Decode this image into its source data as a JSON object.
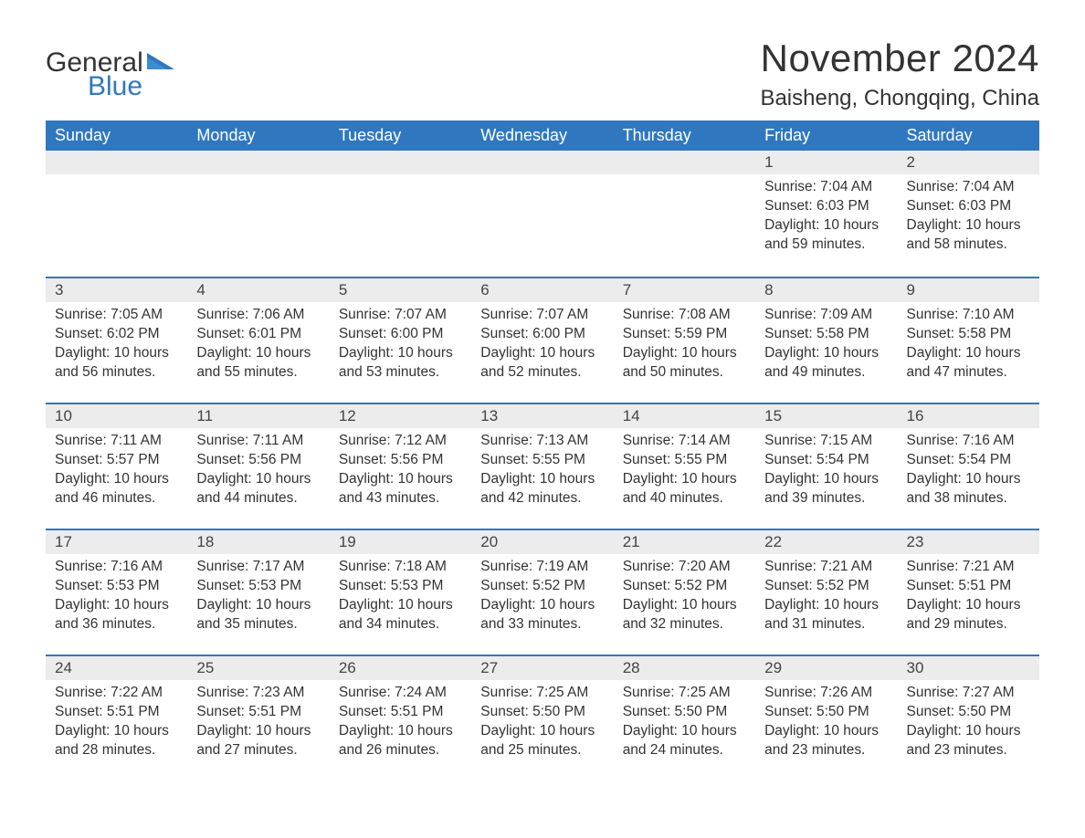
{
  "brand": {
    "word1": "General",
    "word2": "Blue",
    "word1_color": "#333333",
    "word2_color": "#2f78bf",
    "icon_color": "#2f78bf",
    "font_size_pt": 22
  },
  "header": {
    "month_title": "November 2024",
    "location": "Baisheng, Chongqing, China",
    "title_color": "#333333",
    "title_fontsize_pt": 32,
    "location_fontsize_pt": 18
  },
  "calendar": {
    "type": "table",
    "columns": [
      "Sunday",
      "Monday",
      "Tuesday",
      "Wednesday",
      "Thursday",
      "Friday",
      "Saturday"
    ],
    "header_bg": "#2f78bf",
    "header_text_color": "#ffffff",
    "header_fontsize_pt": 13,
    "daynum_bg": "#ececec",
    "daynum_border_top": "#2f78bf",
    "daynum_fontsize_pt": 13,
    "body_fontsize_pt": 12,
    "body_text_color": "#333333",
    "background_color": "#ffffff",
    "weeks": [
      [
        null,
        null,
        null,
        null,
        null,
        {
          "day": "1",
          "sunrise": "Sunrise: 7:04 AM",
          "sunset": "Sunset: 6:03 PM",
          "daylight": "Daylight: 10 hours and 59 minutes."
        },
        {
          "day": "2",
          "sunrise": "Sunrise: 7:04 AM",
          "sunset": "Sunset: 6:03 PM",
          "daylight": "Daylight: 10 hours and 58 minutes."
        }
      ],
      [
        {
          "day": "3",
          "sunrise": "Sunrise: 7:05 AM",
          "sunset": "Sunset: 6:02 PM",
          "daylight": "Daylight: 10 hours and 56 minutes."
        },
        {
          "day": "4",
          "sunrise": "Sunrise: 7:06 AM",
          "sunset": "Sunset: 6:01 PM",
          "daylight": "Daylight: 10 hours and 55 minutes."
        },
        {
          "day": "5",
          "sunrise": "Sunrise: 7:07 AM",
          "sunset": "Sunset: 6:00 PM",
          "daylight": "Daylight: 10 hours and 53 minutes."
        },
        {
          "day": "6",
          "sunrise": "Sunrise: 7:07 AM",
          "sunset": "Sunset: 6:00 PM",
          "daylight": "Daylight: 10 hours and 52 minutes."
        },
        {
          "day": "7",
          "sunrise": "Sunrise: 7:08 AM",
          "sunset": "Sunset: 5:59 PM",
          "daylight": "Daylight: 10 hours and 50 minutes."
        },
        {
          "day": "8",
          "sunrise": "Sunrise: 7:09 AM",
          "sunset": "Sunset: 5:58 PM",
          "daylight": "Daylight: 10 hours and 49 minutes."
        },
        {
          "day": "9",
          "sunrise": "Sunrise: 7:10 AM",
          "sunset": "Sunset: 5:58 PM",
          "daylight": "Daylight: 10 hours and 47 minutes."
        }
      ],
      [
        {
          "day": "10",
          "sunrise": "Sunrise: 7:11 AM",
          "sunset": "Sunset: 5:57 PM",
          "daylight": "Daylight: 10 hours and 46 minutes."
        },
        {
          "day": "11",
          "sunrise": "Sunrise: 7:11 AM",
          "sunset": "Sunset: 5:56 PM",
          "daylight": "Daylight: 10 hours and 44 minutes."
        },
        {
          "day": "12",
          "sunrise": "Sunrise: 7:12 AM",
          "sunset": "Sunset: 5:56 PM",
          "daylight": "Daylight: 10 hours and 43 minutes."
        },
        {
          "day": "13",
          "sunrise": "Sunrise: 7:13 AM",
          "sunset": "Sunset: 5:55 PM",
          "daylight": "Daylight: 10 hours and 42 minutes."
        },
        {
          "day": "14",
          "sunrise": "Sunrise: 7:14 AM",
          "sunset": "Sunset: 5:55 PM",
          "daylight": "Daylight: 10 hours and 40 minutes."
        },
        {
          "day": "15",
          "sunrise": "Sunrise: 7:15 AM",
          "sunset": "Sunset: 5:54 PM",
          "daylight": "Daylight: 10 hours and 39 minutes."
        },
        {
          "day": "16",
          "sunrise": "Sunrise: 7:16 AM",
          "sunset": "Sunset: 5:54 PM",
          "daylight": "Daylight: 10 hours and 38 minutes."
        }
      ],
      [
        {
          "day": "17",
          "sunrise": "Sunrise: 7:16 AM",
          "sunset": "Sunset: 5:53 PM",
          "daylight": "Daylight: 10 hours and 36 minutes."
        },
        {
          "day": "18",
          "sunrise": "Sunrise: 7:17 AM",
          "sunset": "Sunset: 5:53 PM",
          "daylight": "Daylight: 10 hours and 35 minutes."
        },
        {
          "day": "19",
          "sunrise": "Sunrise: 7:18 AM",
          "sunset": "Sunset: 5:53 PM",
          "daylight": "Daylight: 10 hours and 34 minutes."
        },
        {
          "day": "20",
          "sunrise": "Sunrise: 7:19 AM",
          "sunset": "Sunset: 5:52 PM",
          "daylight": "Daylight: 10 hours and 33 minutes."
        },
        {
          "day": "21",
          "sunrise": "Sunrise: 7:20 AM",
          "sunset": "Sunset: 5:52 PM",
          "daylight": "Daylight: 10 hours and 32 minutes."
        },
        {
          "day": "22",
          "sunrise": "Sunrise: 7:21 AM",
          "sunset": "Sunset: 5:52 PM",
          "daylight": "Daylight: 10 hours and 31 minutes."
        },
        {
          "day": "23",
          "sunrise": "Sunrise: 7:21 AM",
          "sunset": "Sunset: 5:51 PM",
          "daylight": "Daylight: 10 hours and 29 minutes."
        }
      ],
      [
        {
          "day": "24",
          "sunrise": "Sunrise: 7:22 AM",
          "sunset": "Sunset: 5:51 PM",
          "daylight": "Daylight: 10 hours and 28 minutes."
        },
        {
          "day": "25",
          "sunrise": "Sunrise: 7:23 AM",
          "sunset": "Sunset: 5:51 PM",
          "daylight": "Daylight: 10 hours and 27 minutes."
        },
        {
          "day": "26",
          "sunrise": "Sunrise: 7:24 AM",
          "sunset": "Sunset: 5:51 PM",
          "daylight": "Daylight: 10 hours and 26 minutes."
        },
        {
          "day": "27",
          "sunrise": "Sunrise: 7:25 AM",
          "sunset": "Sunset: 5:50 PM",
          "daylight": "Daylight: 10 hours and 25 minutes."
        },
        {
          "day": "28",
          "sunrise": "Sunrise: 7:25 AM",
          "sunset": "Sunset: 5:50 PM",
          "daylight": "Daylight: 10 hours and 24 minutes."
        },
        {
          "day": "29",
          "sunrise": "Sunrise: 7:26 AM",
          "sunset": "Sunset: 5:50 PM",
          "daylight": "Daylight: 10 hours and 23 minutes."
        },
        {
          "day": "30",
          "sunrise": "Sunrise: 7:27 AM",
          "sunset": "Sunset: 5:50 PM",
          "daylight": "Daylight: 10 hours and 23 minutes."
        }
      ]
    ]
  }
}
